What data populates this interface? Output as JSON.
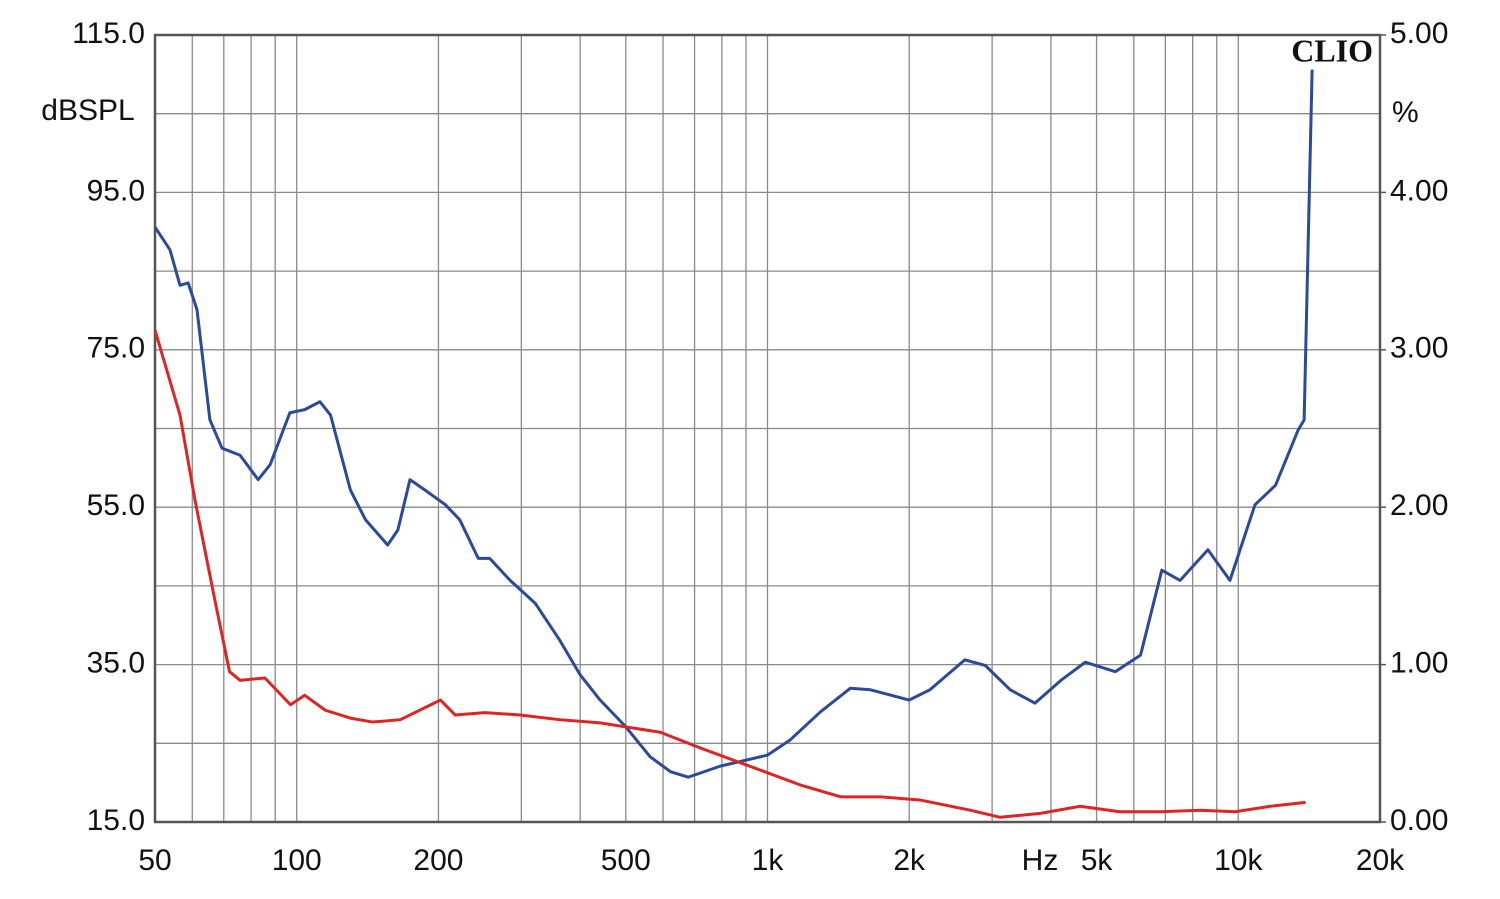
{
  "chart_data": {
    "type": "line",
    "brand": "CLIO",
    "y_label": "dBSPL",
    "y2_label": "%",
    "x_label": "Hz",
    "xscale": "log",
    "grid": true,
    "xlim": [
      50,
      20000
    ],
    "xticks": [
      50,
      100,
      200,
      500,
      {
        "value": 1000,
        "label": "1k"
      },
      {
        "value": 2000,
        "label": "2k"
      },
      {
        "value": 5000,
        "label": "5k"
      },
      {
        "value": 10000,
        "label": "10k"
      },
      {
        "value": 20000,
        "label": "20k"
      }
    ],
    "xticks_minor": [
      60,
      70,
      80,
      90,
      300,
      400,
      600,
      700,
      800,
      900,
      3000,
      4000,
      6000,
      7000,
      8000,
      9000
    ],
    "ylim": [
      15,
      115
    ],
    "yticks": [
      {
        "value": 15,
        "label": "15.0"
      },
      {
        "value": 35,
        "label": "35.0"
      },
      {
        "value": 55,
        "label": "55.0"
      },
      {
        "value": 75,
        "label": "75.0"
      },
      {
        "value": 95,
        "label": "95.0"
      },
      {
        "value": 115,
        "label": "115.0"
      }
    ],
    "yticks_minor": [
      25,
      45,
      65,
      85,
      105
    ],
    "y2lim": [
      0,
      5
    ],
    "y2ticks": [
      {
        "value": 0,
        "label": "0.00"
      },
      {
        "value": 1,
        "label": "1.00"
      },
      {
        "value": 2,
        "label": "2.00"
      },
      {
        "value": 3,
        "label": "3.00"
      },
      {
        "value": 4,
        "label": "4.00"
      },
      {
        "value": 5,
        "label": "5.00"
      }
    ],
    "series": [
      {
        "color": "#2b4a9c",
        "x": [
          50,
          53.8,
          56.5,
          58.8,
          61.4,
          65.4,
          69.4,
          75.8,
          82.8,
          87.8,
          96.7,
          104,
          112,
          118,
          130,
          140,
          156,
          164,
          174,
          187,
          207,
          222,
          243,
          257,
          284,
          321,
          362,
          400,
          441,
          500,
          563,
          622,
          679,
          794,
          1000,
          1116,
          1296,
          1500,
          1654,
          2000,
          2213,
          2625,
          2900,
          3278,
          3700,
          4200,
          4730,
          5480,
          6200,
          6880,
          7525,
          8620,
          9600,
          10850,
          12000,
          13400,
          13800,
          14350
        ],
        "values": [
          90.6,
          87.7,
          83.2,
          83.5,
          80.1,
          66.1,
          62.5,
          61.6,
          58.5,
          60.4,
          67.0,
          67.4,
          68.4,
          66.7,
          57.2,
          53.4,
          50.2,
          52.1,
          58.5,
          57.2,
          55.3,
          53.4,
          48.5,
          48.5,
          45.7,
          42.8,
          38.1,
          33.7,
          30.5,
          27.1,
          23.3,
          21.4,
          20.7,
          22.1,
          23.5,
          25.4,
          29.0,
          32.0,
          31.8,
          30.5,
          31.8,
          35.6,
          34.9,
          31.8,
          30.1,
          33.0,
          35.3,
          34.1,
          36.2,
          47.0,
          45.7,
          49.6,
          45.7,
          55.3,
          57.8,
          64.8,
          66.1,
          110.6
        ]
      },
      {
        "color": "#e02424",
        "x": [
          50,
          56.5,
          60.8,
          67,
          72,
          75.8,
          85.6,
          97,
          104,
          115,
          130,
          145,
          166,
          202,
          217,
          251,
          298,
          362,
          441,
          592,
          720,
          965,
          1175,
          1430,
          1736,
          2105,
          2695,
          3120,
          3800,
          4615,
          5600,
          6830,
          8300,
          9850,
          11700,
          13900
        ],
        "values": [
          77.5,
          66.7,
          55.9,
          43.2,
          34.1,
          33.0,
          33.3,
          29.9,
          31.1,
          29.2,
          28.2,
          27.7,
          28.0,
          30.5,
          28.6,
          28.9,
          28.6,
          28.0,
          27.6,
          26.4,
          24.4,
          21.6,
          19.7,
          18.2,
          18.2,
          17.8,
          16.5,
          15.6,
          16.1,
          17.0,
          16.3,
          16.3,
          16.5,
          16.3,
          17.0,
          17.5
        ]
      }
    ]
  }
}
